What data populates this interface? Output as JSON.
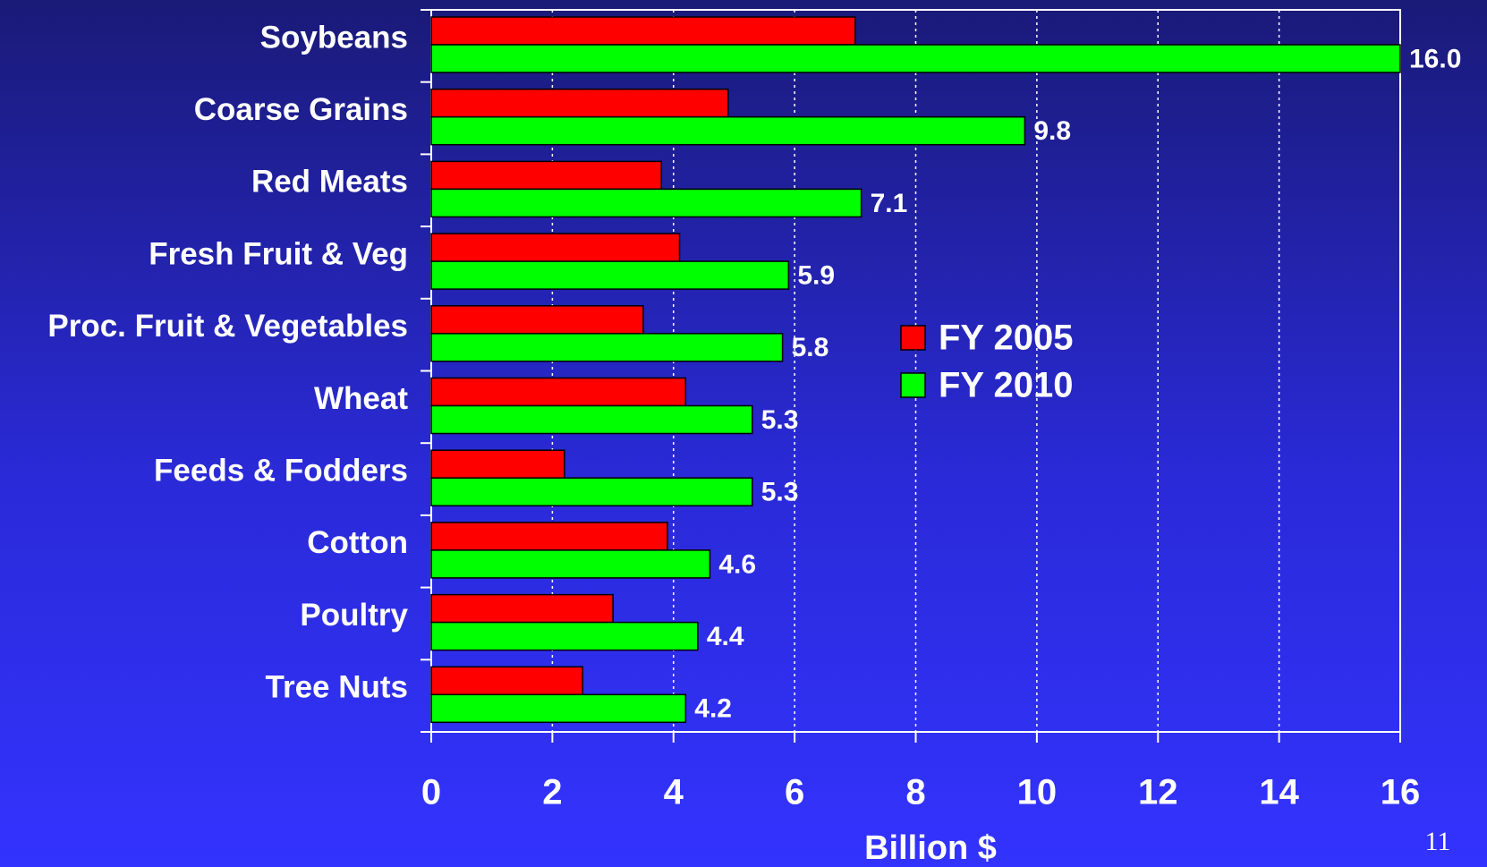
{
  "chart_data": {
    "type": "hbar",
    "categories": [
      "Soybeans",
      "Coarse Grains",
      "Red Meats",
      "Fresh Fruit & Veg",
      "Proc. Fruit & Vegetables",
      "Wheat",
      "Feeds & Fodders",
      "Cotton",
      "Poultry",
      "Tree Nuts"
    ],
    "series": [
      {
        "name": "FY 2005",
        "color": "#ff0000",
        "values": [
          7.0,
          4.9,
          3.8,
          4.1,
          3.5,
          4.2,
          2.2,
          3.9,
          3.0,
          2.5
        ]
      },
      {
        "name": "FY 2010",
        "color": "#00ff00",
        "values": [
          16.0,
          9.8,
          7.1,
          5.9,
          5.8,
          5.3,
          5.3,
          4.6,
          4.4,
          4.2
        ],
        "value_labels": [
          "16.0",
          "9.8",
          "7.1",
          "5.9",
          "5.8",
          "5.3",
          "5.3",
          "4.6",
          "4.4",
          "4.2"
        ]
      }
    ],
    "xlabel": "Billion $",
    "xlim": [
      0,
      16
    ],
    "xticks": [
      0,
      2,
      4,
      6,
      8,
      10,
      12,
      14,
      16
    ],
    "grid": true
  },
  "page_number": "11"
}
